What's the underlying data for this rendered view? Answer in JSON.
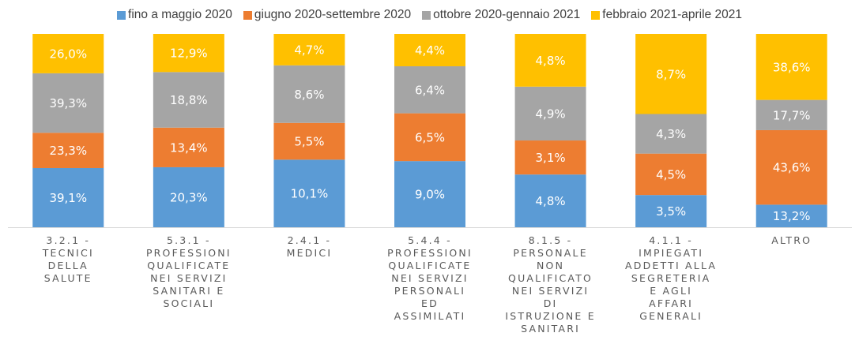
{
  "chart_data": {
    "type": "bar",
    "stacked": true,
    "normalized": true,
    "categories": [
      "3.2.1 -\nTECNICI\nDELLA\nSALUTE",
      "5.3.1 -\nPROFESSIONI\nQUALIFICATE\nNEI SERVIZI\nSANITARI E\nSOCIALI",
      "2.4.1 -\nMEDICI",
      "5.4.4 -\nPROFESSIONI\nQUALIFICATE\nNEI SERVIZI\nPERSONALI\nED\nASSIMILATI",
      "8.1.5 -\nPERSONALE\nNON\nQUALIFICATO\nNEI SERVIZI\nDI\nISTRUZIONE E\nSANITARI",
      "4.1.1 -\nIMPIEGATI\nADDETTI ALLA\nSEGRETERIA\nE AGLI\nAFFARI\nGENERALI",
      "ALTRO"
    ],
    "series": [
      {
        "name": "fino a maggio 2020",
        "color": "#5b9bd5",
        "values": [
          39.1,
          20.3,
          10.1,
          9.0,
          4.8,
          3.5,
          13.2
        ],
        "value_labels": [
          "39,1%",
          "20,3%",
          "10,1%",
          "9,0%",
          "4,8%",
          "3,5%",
          "13,2%"
        ]
      },
      {
        "name": "giugno 2020-settembre 2020",
        "color": "#ed7d31",
        "values": [
          23.3,
          13.4,
          5.5,
          6.5,
          3.1,
          4.5,
          43.6
        ],
        "value_labels": [
          "23,3%",
          "13,4%",
          "5,5%",
          "6,5%",
          "3,1%",
          "4,5%",
          "43,6%"
        ]
      },
      {
        "name": "ottobre 2020-gennaio 2021",
        "color": "#a5a5a5",
        "values": [
          39.3,
          18.8,
          8.6,
          6.4,
          4.9,
          4.3,
          17.7
        ],
        "value_labels": [
          "39,3%",
          "18,8%",
          "8,6%",
          "6,4%",
          "4,9%",
          "4,3%",
          "17,7%"
        ]
      },
      {
        "name": "febbraio 2021-aprile 2021",
        "color": "#ffc000",
        "values": [
          26.0,
          12.9,
          4.7,
          4.4,
          4.8,
          8.7,
          38.6
        ],
        "value_labels": [
          "26,0%",
          "12,9%",
          "4,7%",
          "4,4%",
          "4,8%",
          "8,7%",
          "38,6%"
        ]
      }
    ]
  }
}
